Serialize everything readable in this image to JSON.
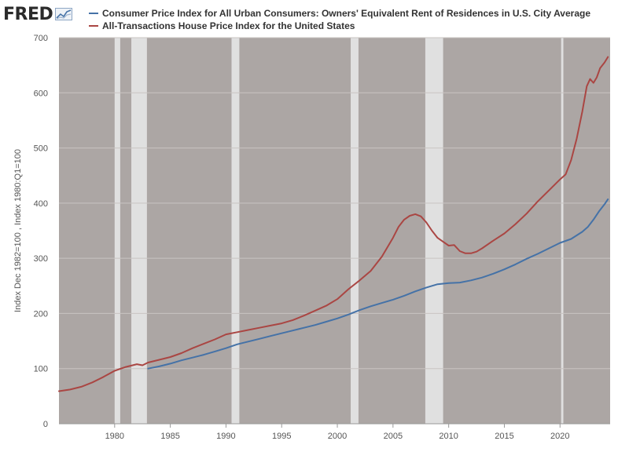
{
  "brand": {
    "name": "FRED",
    "logo_icon": "fred-chart-logo-icon"
  },
  "chart_data": {
    "type": "line",
    "title": "",
    "xlabel": "",
    "ylabel": "Index Dec 1982=100 , Index 1980:Q1=100",
    "xlim": [
      1975.0,
      2024.5
    ],
    "ylim": [
      0,
      700
    ],
    "y_ticks": [
      0,
      100,
      200,
      300,
      400,
      500,
      600,
      700
    ],
    "x_ticks": [
      1980,
      1985,
      1990,
      1995,
      2000,
      2005,
      2010,
      2015,
      2020
    ],
    "grid": true,
    "legend_position": "top",
    "plot_background": "#aca6a4",
    "recession_band_color": "#e0e0e0",
    "recessions": [
      [
        1980.0,
        1980.5
      ],
      [
        1981.5,
        1982.9
      ],
      [
        1990.5,
        1991.2
      ],
      [
        2001.2,
        2001.9
      ],
      [
        2007.9,
        2009.5
      ],
      [
        2020.1,
        2020.3
      ]
    ],
    "series": [
      {
        "name": "Consumer Price Index for All Urban Consumers: Owners' Equivalent Rent of Residences in U.S. City Average",
        "color": "#4572a7",
        "points": [
          [
            1983.0,
            100
          ],
          [
            1984.0,
            104
          ],
          [
            1985.0,
            109
          ],
          [
            1986.0,
            115
          ],
          [
            1987.0,
            120
          ],
          [
            1988.0,
            125
          ],
          [
            1989.0,
            131
          ],
          [
            1990.0,
            137
          ],
          [
            1991.0,
            144
          ],
          [
            1992.0,
            149
          ],
          [
            1993.0,
            154
          ],
          [
            1994.0,
            159
          ],
          [
            1995.0,
            164
          ],
          [
            1996.0,
            169
          ],
          [
            1997.0,
            174
          ],
          [
            1998.0,
            179
          ],
          [
            1999.0,
            185
          ],
          [
            2000.0,
            191
          ],
          [
            2001.0,
            198
          ],
          [
            2002.0,
            206
          ],
          [
            2003.0,
            213
          ],
          [
            2004.0,
            219
          ],
          [
            2005.0,
            225
          ],
          [
            2006.0,
            232
          ],
          [
            2007.0,
            240
          ],
          [
            2008.0,
            247
          ],
          [
            2009.0,
            253
          ],
          [
            2010.0,
            255
          ],
          [
            2011.0,
            256
          ],
          [
            2012.0,
            260
          ],
          [
            2013.0,
            265
          ],
          [
            2014.0,
            272
          ],
          [
            2015.0,
            280
          ],
          [
            2016.0,
            289
          ],
          [
            2017.0,
            299
          ],
          [
            2018.0,
            308
          ],
          [
            2019.0,
            318
          ],
          [
            2020.0,
            328
          ],
          [
            2021.0,
            335
          ],
          [
            2022.0,
            348
          ],
          [
            2022.5,
            357
          ],
          [
            2023.0,
            370
          ],
          [
            2023.5,
            385
          ],
          [
            2024.0,
            398
          ],
          [
            2024.3,
            407
          ]
        ]
      },
      {
        "name": "All-Transactions House Price Index for the United States",
        "color": "#aa4643",
        "points": [
          [
            1975.0,
            59
          ],
          [
            1976.0,
            62
          ],
          [
            1977.0,
            67
          ],
          [
            1978.0,
            75
          ],
          [
            1979.0,
            85
          ],
          [
            1980.0,
            96
          ],
          [
            1981.0,
            103
          ],
          [
            1982.0,
            108
          ],
          [
            1982.5,
            106
          ],
          [
            1983.0,
            111
          ],
          [
            1984.0,
            116
          ],
          [
            1985.0,
            121
          ],
          [
            1986.0,
            128
          ],
          [
            1987.0,
            137
          ],
          [
            1988.0,
            145
          ],
          [
            1989.0,
            153
          ],
          [
            1990.0,
            162
          ],
          [
            1991.0,
            166
          ],
          [
            1992.0,
            170
          ],
          [
            1993.0,
            174
          ],
          [
            1994.0,
            178
          ],
          [
            1995.0,
            182
          ],
          [
            1996.0,
            188
          ],
          [
            1997.0,
            196
          ],
          [
            1998.0,
            205
          ],
          [
            1999.0,
            214
          ],
          [
            2000.0,
            226
          ],
          [
            2001.0,
            244
          ],
          [
            2002.0,
            260
          ],
          [
            2003.0,
            277
          ],
          [
            2004.0,
            303
          ],
          [
            2005.0,
            337
          ],
          [
            2005.5,
            357
          ],
          [
            2006.0,
            370
          ],
          [
            2006.5,
            377
          ],
          [
            2007.0,
            380
          ],
          [
            2007.5,
            376
          ],
          [
            2008.0,
            365
          ],
          [
            2008.5,
            350
          ],
          [
            2009.0,
            337
          ],
          [
            2009.5,
            330
          ],
          [
            2010.0,
            323
          ],
          [
            2010.5,
            324
          ],
          [
            2011.0,
            313
          ],
          [
            2011.5,
            309
          ],
          [
            2012.0,
            309
          ],
          [
            2012.5,
            312
          ],
          [
            2013.0,
            318
          ],
          [
            2014.0,
            332
          ],
          [
            2015.0,
            345
          ],
          [
            2016.0,
            362
          ],
          [
            2017.0,
            381
          ],
          [
            2018.0,
            403
          ],
          [
            2019.0,
            423
          ],
          [
            2020.0,
            443
          ],
          [
            2020.5,
            452
          ],
          [
            2021.0,
            478
          ],
          [
            2021.5,
            517
          ],
          [
            2022.0,
            566
          ],
          [
            2022.4,
            612
          ],
          [
            2022.7,
            625
          ],
          [
            2023.0,
            618
          ],
          [
            2023.3,
            628
          ],
          [
            2023.6,
            645
          ],
          [
            2024.0,
            655
          ],
          [
            2024.3,
            665
          ]
        ]
      }
    ]
  }
}
